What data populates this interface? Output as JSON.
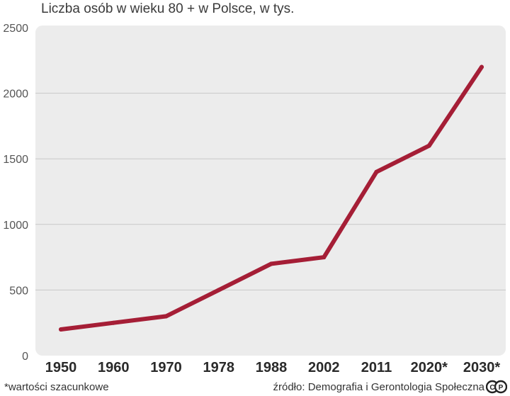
{
  "chart_data": {
    "type": "line",
    "title": "Liczba osób w wieku 80 + w Polsce, w tys.",
    "categories": [
      "1950",
      "1960",
      "1970",
      "1978",
      "1988",
      "2002",
      "2011",
      "2020*",
      "2030*"
    ],
    "series": [
      {
        "values": [
          200,
          250,
          300,
          500,
          700,
          750,
          1400,
          1600,
          2200
        ]
      }
    ],
    "ylim": [
      0,
      2500
    ],
    "yticks": [
      0,
      500,
      1000,
      1500,
      2000,
      2500
    ],
    "xlabel": "",
    "ylabel": "",
    "grid": true,
    "line_color": "#a51e36",
    "background_color": "#ececec",
    "grid_color": "#c8c8c8"
  },
  "footnote": "*wartości szacunkowe",
  "source": "źródło: Demografia i Gerontologia Społeczna",
  "logo_icon": "cp-logo-icon"
}
